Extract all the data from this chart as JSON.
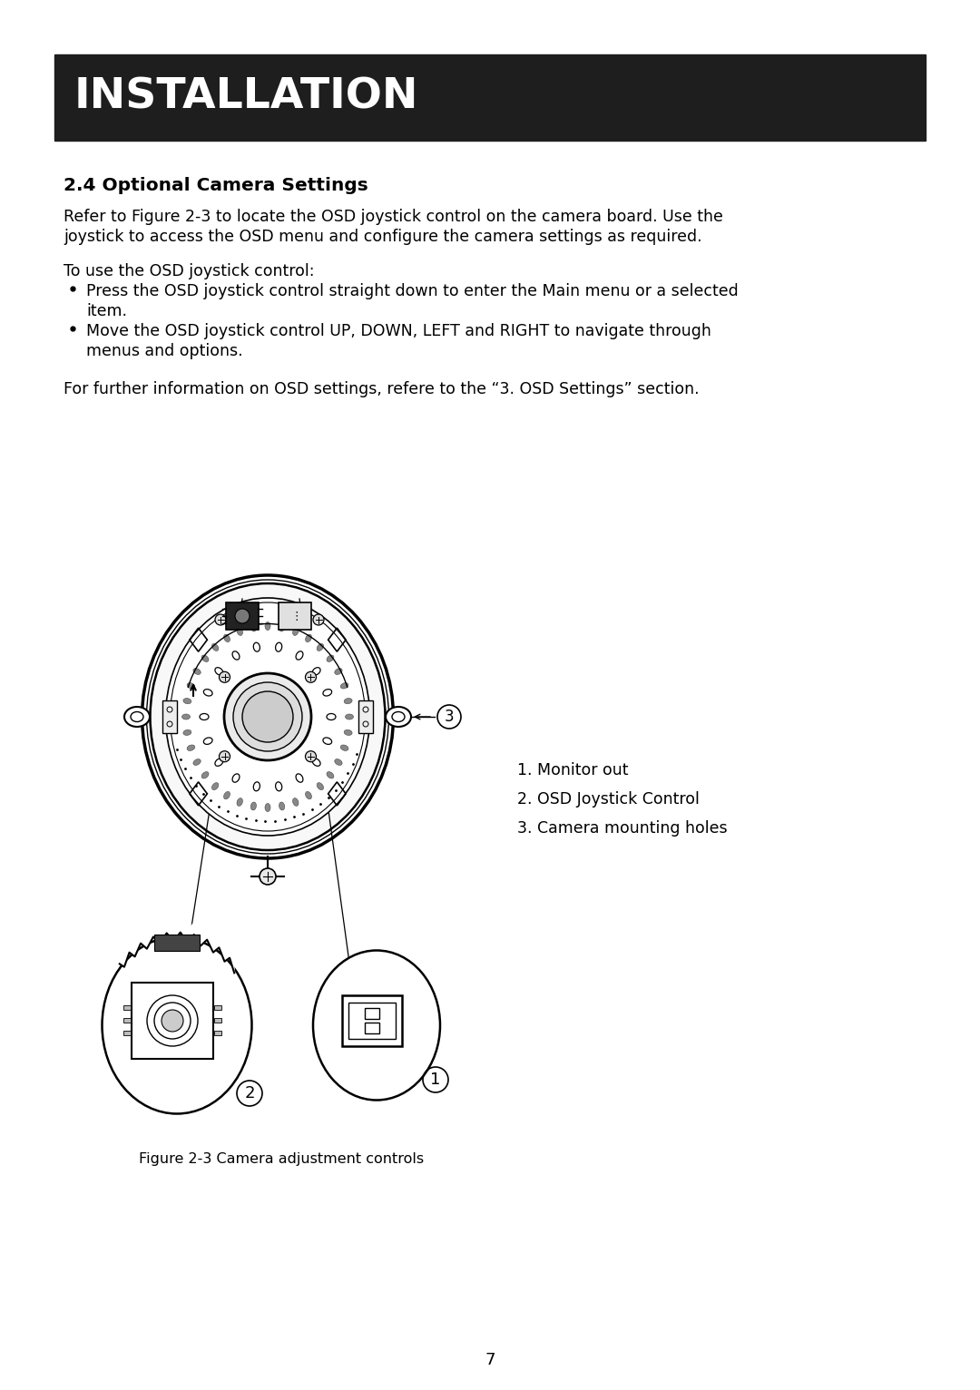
{
  "title": "INSTALLATION",
  "title_bg": "#1e1e1e",
  "title_color": "#ffffff",
  "section": "2.4 Optional Camera Settings",
  "para1_line1": "Refer to Figure 2-3 to locate the OSD joystick control on the camera board. Use the",
  "para1_line2": "joystick to access the OSD menu and configure the camera settings as required.",
  "para2": "To use the OSD joystick control:",
  "bullet1_line1": "Press the OSD joystick control straight down to enter the Main menu or a selected",
  "bullet1_line2": "item.",
  "bullet2_line1": "Move the OSD joystick control UP, DOWN, LEFT and RIGHT to navigate through",
  "bullet2_line2": "menus and options.",
  "para3": "For further information on OSD settings, refere to the “3. OSD Settings” section.",
  "legend": [
    "1. Monitor out",
    "2. OSD Joystick Control",
    "3. Camera mounting holes"
  ],
  "caption": "Figure 2-3 Camera adjustment controls",
  "page_num": "7",
  "bg_color": "#ffffff",
  "text_color": "#000000"
}
